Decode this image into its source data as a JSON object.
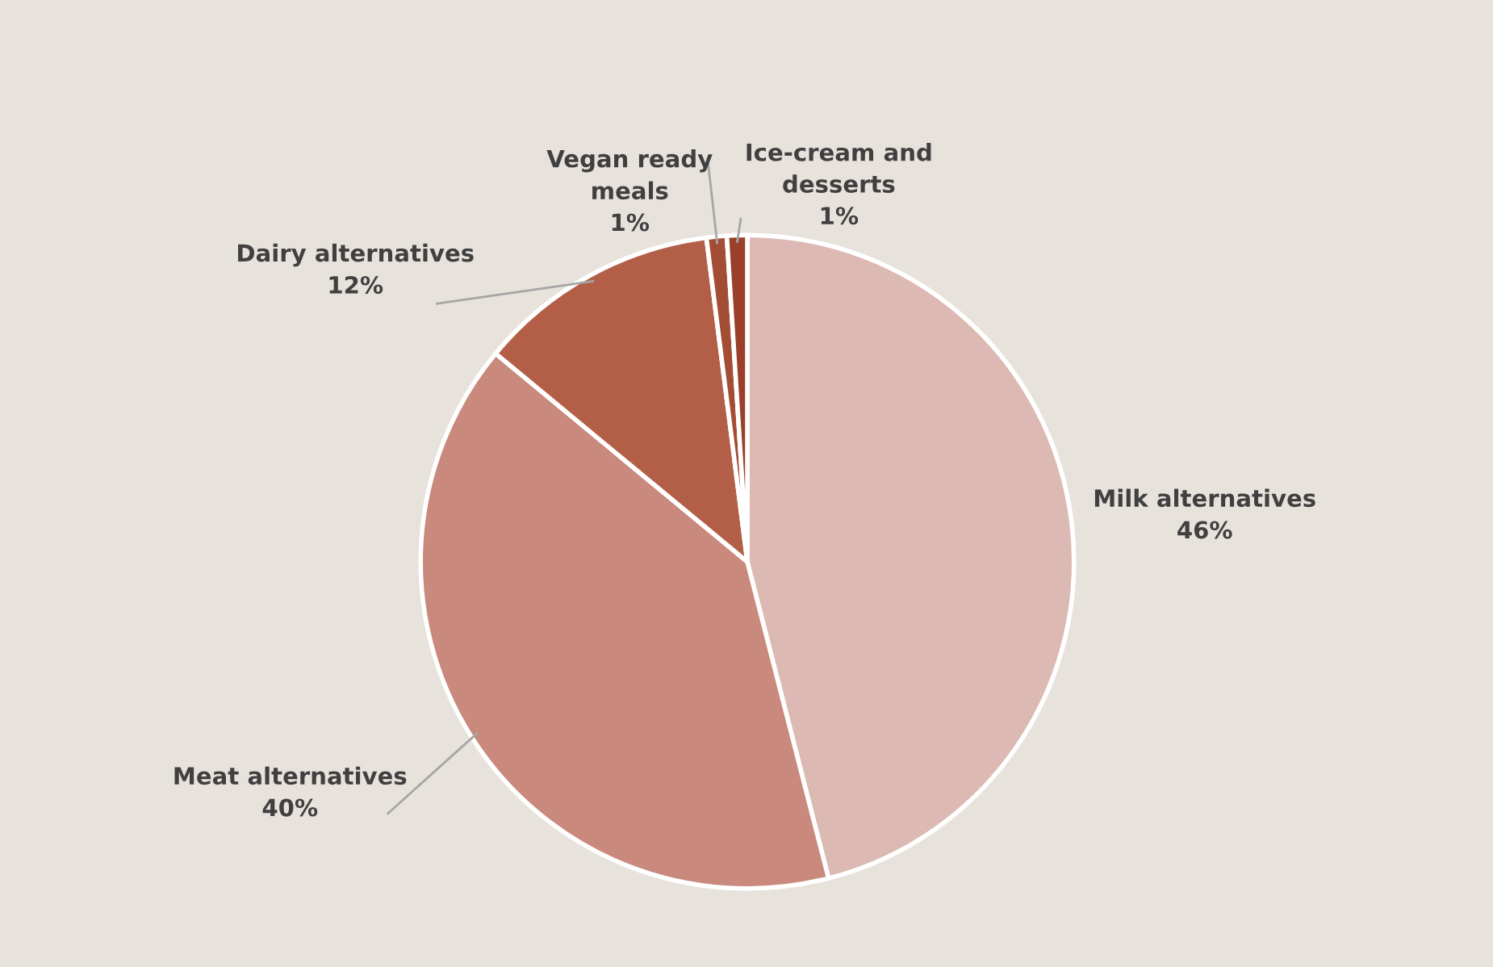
{
  "chart_data": {
    "type": "pie",
    "categories": [
      "Milk alternatives",
      "Meat alternatives",
      "Dairy alternatives",
      "Vegan ready meals",
      "Ice-cream and desserts"
    ],
    "values": [
      46,
      40,
      12,
      1,
      1
    ],
    "colors": [
      "#dcb9b2",
      "#c9897c",
      "#b35f47",
      "#a44d35",
      "#9a3f2a"
    ],
    "value_labels": [
      "46%",
      "40%",
      "12%",
      "1%",
      "1%"
    ],
    "legend": false
  }
}
